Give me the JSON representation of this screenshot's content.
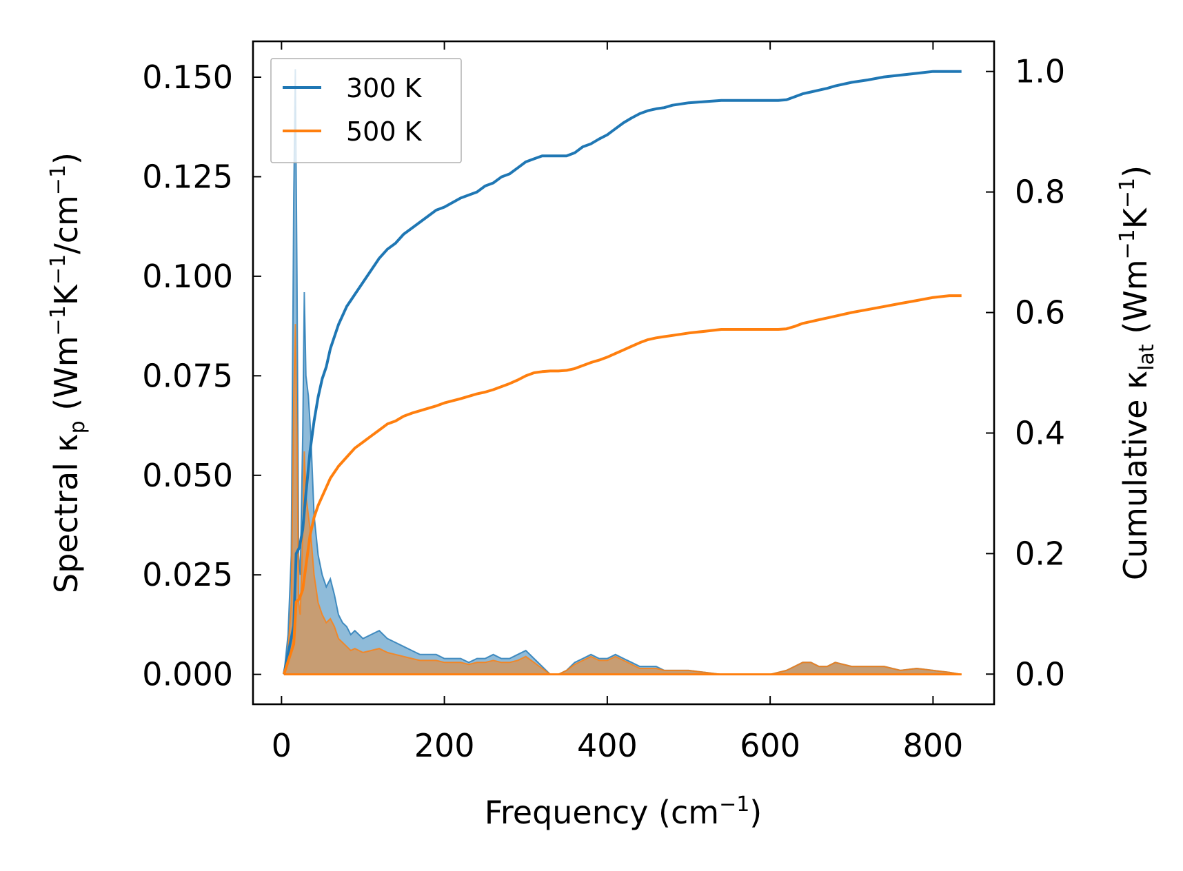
{
  "chart_data": {
    "type": "line",
    "xlabel": {
      "text": "Frequency (cm",
      "sup": "−1",
      "tail": ")"
    },
    "ylabel_left": {
      "text": "Spectral κ",
      "sub": "p",
      "mid": " (Wm",
      "sup1": "−1",
      "k": "K",
      "sup2": "−1",
      "mid2": "/cm",
      "sup3": "−1",
      "tail": ")"
    },
    "ylabel_right": {
      "text": "Cumulative κ",
      "sub": "lat",
      "mid": " (Wm",
      "sup1": "−1",
      "k": "K",
      "sup2": "−1",
      "tail": ")"
    },
    "xlim": [
      -35,
      875
    ],
    "ylim_left": [
      -0.0075,
      0.159
    ],
    "ylim_right": [
      -0.05,
      1.05
    ],
    "x_ticks": [
      0,
      200,
      400,
      600,
      800
    ],
    "x_tick_labels": [
      "0",
      "200",
      "400",
      "600",
      "800"
    ],
    "y_left_ticks": [
      0.0,
      0.025,
      0.05,
      0.075,
      0.1,
      0.125,
      0.15
    ],
    "y_left_tick_labels": [
      "0.000",
      "0.025",
      "0.050",
      "0.075",
      "0.100",
      "0.125",
      "0.150"
    ],
    "y_right_ticks": [
      0.0,
      0.2,
      0.4,
      0.6,
      0.8,
      1.0
    ],
    "y_right_tick_labels": [
      "0.0",
      "0.2",
      "0.4",
      "0.6",
      "0.8",
      "1.0"
    ],
    "legend": {
      "position": "upper-left",
      "entries": [
        "300 K",
        "500 K"
      ]
    },
    "colors": {
      "300 K": "#1f77b4",
      "500 K": "#ff7f0e"
    },
    "series": [
      {
        "name": "300 K",
        "axis": "left",
        "kind": "spectral-fill",
        "x": [
          3,
          8,
          12,
          15,
          17,
          19,
          21,
          23,
          26,
          28,
          30,
          33,
          36,
          40,
          45,
          50,
          55,
          60,
          65,
          70,
          75,
          80,
          85,
          90,
          95,
          100,
          110,
          120,
          130,
          140,
          150,
          160,
          170,
          180,
          190,
          200,
          210,
          220,
          230,
          240,
          250,
          260,
          270,
          280,
          290,
          300,
          310,
          320,
          330,
          340,
          350,
          360,
          370,
          380,
          390,
          400,
          410,
          420,
          430,
          440,
          450,
          460,
          470,
          480,
          500,
          520,
          540,
          560,
          580,
          600,
          620,
          640,
          650,
          660,
          670,
          680,
          700,
          720,
          740,
          760,
          780,
          800,
          820,
          835
        ],
        "y": [
          0.0,
          0.01,
          0.03,
          0.12,
          0.152,
          0.1,
          0.03,
          0.025,
          0.06,
          0.096,
          0.075,
          0.07,
          0.06,
          0.04,
          0.03,
          0.025,
          0.022,
          0.024,
          0.02,
          0.015,
          0.013,
          0.012,
          0.01,
          0.011,
          0.01,
          0.009,
          0.01,
          0.011,
          0.009,
          0.008,
          0.007,
          0.006,
          0.005,
          0.005,
          0.005,
          0.004,
          0.004,
          0.004,
          0.003,
          0.004,
          0.004,
          0.005,
          0.004,
          0.004,
          0.005,
          0.006,
          0.004,
          0.002,
          0.0,
          0.0,
          0.001,
          0.003,
          0.004,
          0.005,
          0.004,
          0.004,
          0.005,
          0.004,
          0.003,
          0.002,
          0.002,
          0.002,
          0.001,
          0.001,
          0.001,
          0.0005,
          0.0,
          0.0,
          0.0,
          0.0,
          0.001,
          0.003,
          0.003,
          0.002,
          0.002,
          0.003,
          0.002,
          0.002,
          0.002,
          0.001,
          0.0015,
          0.001,
          0.0005,
          0.0
        ]
      },
      {
        "name": "500 K",
        "axis": "left",
        "kind": "spectral-fill",
        "x": [
          3,
          8,
          12,
          15,
          17,
          19,
          21,
          23,
          26,
          28,
          30,
          33,
          36,
          40,
          45,
          50,
          55,
          60,
          65,
          70,
          75,
          80,
          85,
          90,
          95,
          100,
          110,
          120,
          130,
          140,
          150,
          160,
          170,
          180,
          190,
          200,
          210,
          220,
          230,
          240,
          250,
          260,
          270,
          280,
          290,
          300,
          310,
          320,
          330,
          340,
          350,
          360,
          370,
          380,
          390,
          400,
          410,
          420,
          430,
          440,
          450,
          460,
          470,
          480,
          500,
          520,
          540,
          560,
          580,
          600,
          620,
          640,
          650,
          660,
          670,
          680,
          700,
          720,
          740,
          760,
          780,
          800,
          820,
          835
        ],
        "y": [
          0.0,
          0.006,
          0.018,
          0.07,
          0.088,
          0.06,
          0.018,
          0.015,
          0.035,
          0.056,
          0.045,
          0.04,
          0.035,
          0.025,
          0.018,
          0.015,
          0.013,
          0.014,
          0.012,
          0.009,
          0.008,
          0.007,
          0.006,
          0.0065,
          0.006,
          0.0055,
          0.006,
          0.0065,
          0.0055,
          0.005,
          0.0045,
          0.004,
          0.0035,
          0.0035,
          0.0035,
          0.003,
          0.003,
          0.003,
          0.0025,
          0.003,
          0.003,
          0.0035,
          0.003,
          0.003,
          0.0035,
          0.0045,
          0.003,
          0.0015,
          0.0,
          0.0,
          0.001,
          0.0025,
          0.0035,
          0.0045,
          0.0035,
          0.0035,
          0.0045,
          0.0035,
          0.0025,
          0.0015,
          0.0015,
          0.0015,
          0.001,
          0.001,
          0.001,
          0.0005,
          0.0,
          0.0,
          0.0,
          0.0,
          0.001,
          0.003,
          0.003,
          0.002,
          0.002,
          0.003,
          0.002,
          0.002,
          0.002,
          0.001,
          0.0015,
          0.001,
          0.0005,
          0.0
        ]
      },
      {
        "name": "300 K",
        "axis": "right",
        "kind": "cumulative-line",
        "x": [
          3,
          15,
          18,
          22,
          26,
          30,
          35,
          40,
          45,
          50,
          55,
          60,
          70,
          80,
          90,
          100,
          110,
          120,
          130,
          140,
          150,
          160,
          170,
          180,
          190,
          200,
          220,
          240,
          250,
          260,
          270,
          280,
          290,
          300,
          310,
          320,
          330,
          340,
          350,
          360,
          370,
          380,
          390,
          400,
          410,
          420,
          430,
          440,
          450,
          460,
          470,
          480,
          500,
          520,
          540,
          560,
          580,
          600,
          610,
          620,
          630,
          640,
          650,
          660,
          670,
          680,
          700,
          720,
          740,
          760,
          780,
          800,
          820,
          835
        ],
        "y": [
          0.0,
          0.08,
          0.2,
          0.21,
          0.24,
          0.3,
          0.37,
          0.42,
          0.46,
          0.49,
          0.51,
          0.54,
          0.58,
          0.61,
          0.63,
          0.65,
          0.67,
          0.69,
          0.705,
          0.715,
          0.73,
          0.74,
          0.75,
          0.76,
          0.77,
          0.775,
          0.79,
          0.8,
          0.81,
          0.815,
          0.825,
          0.83,
          0.84,
          0.85,
          0.855,
          0.86,
          0.86,
          0.86,
          0.86,
          0.865,
          0.875,
          0.88,
          0.888,
          0.895,
          0.905,
          0.915,
          0.923,
          0.93,
          0.935,
          0.938,
          0.94,
          0.944,
          0.948,
          0.95,
          0.952,
          0.952,
          0.952,
          0.952,
          0.952,
          0.953,
          0.958,
          0.963,
          0.966,
          0.969,
          0.972,
          0.976,
          0.982,
          0.986,
          0.991,
          0.994,
          0.997,
          1.0,
          1.0,
          1.0
        ]
      },
      {
        "name": "500 K",
        "axis": "right",
        "kind": "cumulative-line",
        "x": [
          3,
          15,
          18,
          22,
          26,
          30,
          35,
          40,
          45,
          50,
          55,
          60,
          70,
          80,
          90,
          100,
          110,
          120,
          130,
          140,
          150,
          160,
          170,
          180,
          190,
          200,
          220,
          240,
          250,
          260,
          270,
          280,
          290,
          300,
          310,
          320,
          330,
          340,
          350,
          360,
          370,
          380,
          390,
          400,
          410,
          420,
          430,
          440,
          450,
          460,
          470,
          480,
          500,
          520,
          540,
          560,
          580,
          600,
          610,
          620,
          630,
          640,
          650,
          660,
          670,
          680,
          700,
          720,
          740,
          760,
          780,
          800,
          820,
          835
        ],
        "y": [
          0.0,
          0.05,
          0.12,
          0.125,
          0.14,
          0.18,
          0.23,
          0.26,
          0.28,
          0.295,
          0.31,
          0.325,
          0.345,
          0.36,
          0.375,
          0.385,
          0.395,
          0.405,
          0.415,
          0.42,
          0.428,
          0.433,
          0.437,
          0.441,
          0.445,
          0.45,
          0.457,
          0.465,
          0.468,
          0.472,
          0.477,
          0.482,
          0.488,
          0.495,
          0.5,
          0.502,
          0.503,
          0.503,
          0.504,
          0.507,
          0.512,
          0.517,
          0.521,
          0.526,
          0.532,
          0.538,
          0.544,
          0.55,
          0.555,
          0.558,
          0.56,
          0.562,
          0.566,
          0.569,
          0.572,
          0.572,
          0.572,
          0.572,
          0.572,
          0.573,
          0.577,
          0.582,
          0.585,
          0.588,
          0.591,
          0.594,
          0.6,
          0.605,
          0.61,
          0.615,
          0.62,
          0.625,
          0.628,
          0.628
        ]
      }
    ]
  }
}
